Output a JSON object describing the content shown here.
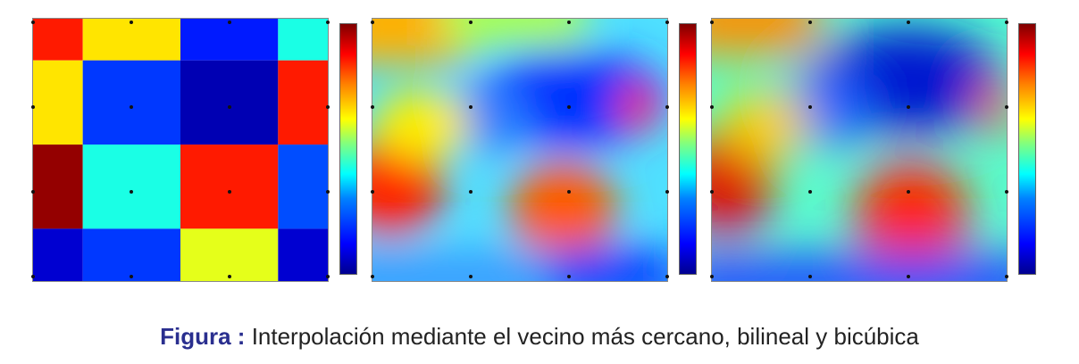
{
  "figure": {
    "label": "Figura :",
    "caption": "Interpolación mediante el vecino más cercano, bilineal y bicúbica"
  },
  "chart_data": [
    {
      "type": "heatmap",
      "method": "nearest neighbor",
      "grid_rows": [
        [
          0.85,
          0.65,
          0.15,
          0.4
        ],
        [
          0.65,
          0.18,
          0.05,
          0.85
        ],
        [
          0.98,
          0.4,
          0.85,
          0.2
        ],
        [
          0.08,
          0.18,
          0.6,
          0.08
        ]
      ],
      "colormap": "jet",
      "colorbar": true
    },
    {
      "type": "heatmap",
      "method": "bilinear",
      "colormap": "jet",
      "colorbar": true
    },
    {
      "type": "heatmap",
      "method": "bicubic",
      "colormap": "jet",
      "colorbar": true
    }
  ]
}
